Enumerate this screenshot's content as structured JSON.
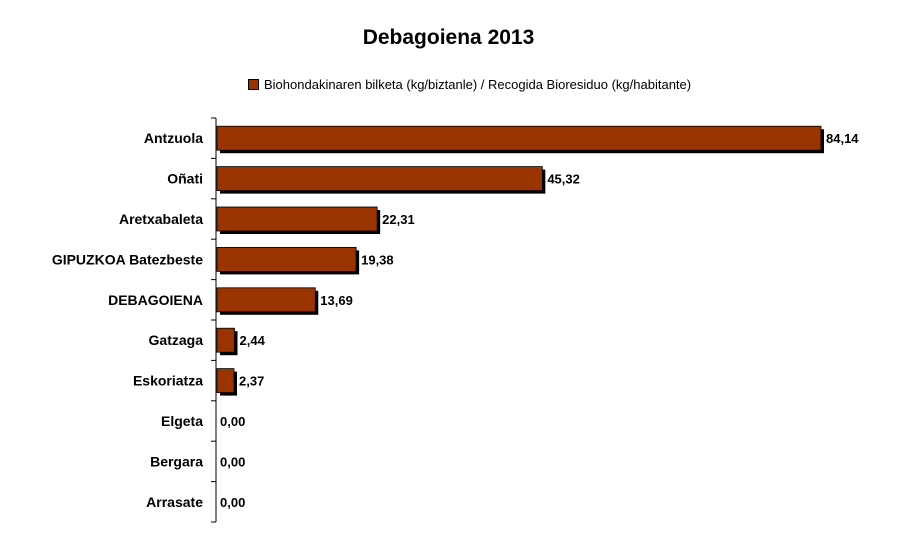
{
  "chart_data": {
    "type": "bar",
    "orientation": "horizontal",
    "title": "Debagoiena 2013",
    "legend": [
      "Biohondakinaren bilketa (kg/biztanle) / Recogida Bioresiduo (kg/habitante)"
    ],
    "legend_placement": "top",
    "categories": [
      "Antzuola",
      "Oñati",
      "Aretxabaleta",
      "GIPUZKOA Batezbeste",
      "DEBAGOIENA",
      "Gatzaga",
      "Eskoriatza",
      "Elgeta",
      "Bergara",
      "Arrasate"
    ],
    "values": [
      84.14,
      45.32,
      22.31,
      19.38,
      13.69,
      2.44,
      2.37,
      0.0,
      0.0,
      0.0
    ],
    "labels": [
      "84,14",
      "45,32",
      "22,31",
      "19,38",
      "13,69",
      "2,44",
      "2,37",
      "0,00",
      "0,00",
      "0,00"
    ],
    "xlim": [
      0,
      85
    ],
    "grid": false,
    "bar_color": "#993300"
  }
}
